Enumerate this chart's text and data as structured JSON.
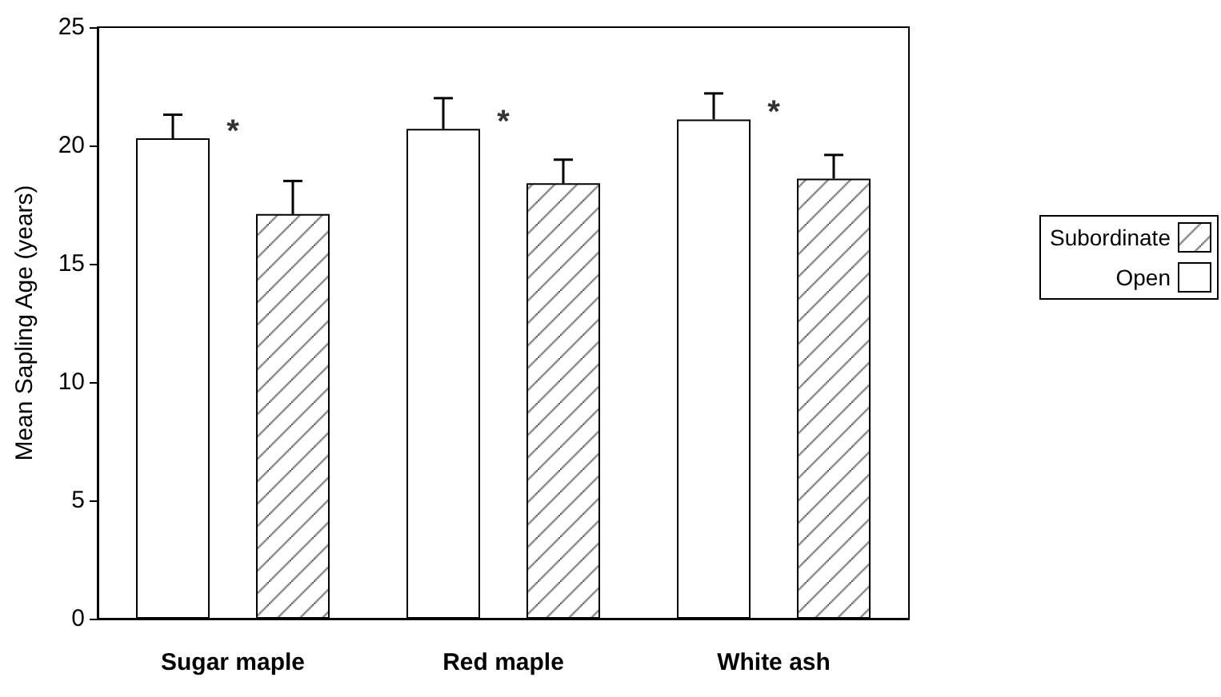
{
  "chart_data": {
    "type": "bar",
    "ylabel": "Mean Sapling Age (years)",
    "categories": [
      "Sugar maple",
      "Red maple",
      "White ash"
    ],
    "series": [
      {
        "name": "Open",
        "color": "#ffffff",
        "values": [
          20.3,
          20.7,
          21.1
        ],
        "errors": [
          [
            20.3,
            21.3
          ],
          [
            20.7,
            22.0
          ],
          [
            21.1,
            22.2
          ]
        ]
      },
      {
        "name": "Subordinate",
        "color": "#000000",
        "values": [
          17.1,
          18.4,
          18.6
        ],
        "errors": [
          [
            17.1,
            18.5
          ],
          [
            18.4,
            19.4
          ],
          [
            18.6,
            19.6
          ]
        ]
      }
    ],
    "ylim": [
      0,
      25
    ],
    "yticks": [
      0,
      5,
      10,
      15,
      20,
      25
    ],
    "grid": false,
    "legend": "right",
    "annotations": [
      "*",
      "*",
      "*"
    ]
  }
}
